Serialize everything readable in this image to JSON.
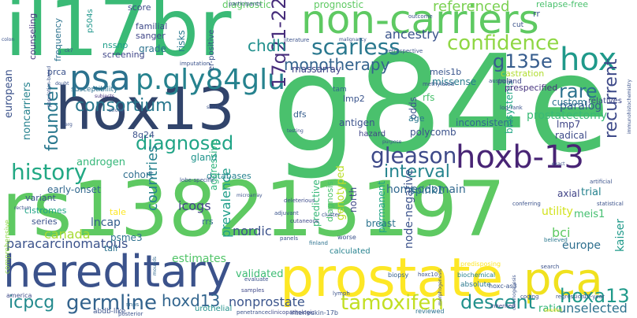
{
  "background": "#ffffff",
  "palette": [
    "#440154",
    "#46327e",
    "#365c8d",
    "#277f8e",
    "#1fa187",
    "#4ac16d",
    "#a0da39",
    "#fde725"
  ],
  "words": [
    {
      "text": "g84e",
      "color": "#4ac16d",
      "size": 170,
      "rot": 0
    },
    {
      "text": "rs138213197",
      "color": "#5ec962",
      "size": 96,
      "rot": 0
    },
    {
      "text": "il17br",
      "color": "#3aba76",
      "size": 100,
      "rot": 0
    },
    {
      "text": "hox13",
      "color": "#31446b",
      "size": 74,
      "rot": 0
    },
    {
      "text": "non-carriers",
      "color": "#5ec962",
      "size": 50,
      "rot": 0
    },
    {
      "text": "hereditary",
      "color": "#3b528b",
      "size": 56,
      "rot": 0
    },
    {
      "text": "prostate",
      "color": "#fde725",
      "size": 68,
      "rot": 0
    },
    {
      "text": "pca",
      "color": "#f0e11e",
      "size": 56,
      "rot": 0
    },
    {
      "text": "hoxb-13",
      "color": "#482475",
      "size": 40,
      "rot": 0
    },
    {
      "text": "p.gly84glu",
      "color": "#26828e",
      "size": 36,
      "rot": 0
    },
    {
      "text": "psa",
      "color": "#2c728e",
      "size": 44,
      "rot": 0
    },
    {
      "text": "hox",
      "color": "#1f998a",
      "size": 40,
      "rot": 0
    },
    {
      "text": "confidence",
      "color": "#8fd744",
      "size": 26,
      "rot": 0
    },
    {
      "text": "scarless",
      "color": "#2a788e",
      "size": 28,
      "rot": 0
    },
    {
      "text": "g135e",
      "color": "#365c8d",
      "size": 24,
      "rot": 0
    },
    {
      "text": "monotherapy",
      "color": "#33638d",
      "size": 20,
      "rot": 0
    },
    {
      "text": "17q21-22",
      "color": "#472d7b",
      "size": 24,
      "rot": -90
    },
    {
      "text": "history",
      "color": "#22a884",
      "size": 28,
      "rot": 0
    },
    {
      "text": "founder",
      "color": "#2a788e",
      "size": 22,
      "rot": -90
    },
    {
      "text": "consortium",
      "color": "#2a788e",
      "size": 22,
      "rot": 0
    },
    {
      "text": "diagnosed",
      "color": "#20a486",
      "size": 24,
      "rot": 0
    },
    {
      "text": "gleason",
      "color": "#3e4a89",
      "size": 28,
      "rot": 0
    },
    {
      "text": "recurrent",
      "color": "#3e4a89",
      "size": 22,
      "rot": -90
    },
    {
      "text": "interval",
      "color": "#25848e",
      "size": 22,
      "rot": 0
    },
    {
      "text": "tamoxifen",
      "color": "#c2df23",
      "size": 26,
      "rot": 0
    },
    {
      "text": "germline",
      "color": "#33638d",
      "size": 26,
      "rot": 0
    },
    {
      "text": "descent",
      "color": "#21918c",
      "size": 24,
      "rot": 0
    },
    {
      "text": "hoxa13",
      "color": "#1f9a8a",
      "size": 24,
      "rot": 0
    },
    {
      "text": "hoxd13",
      "color": "#32658e",
      "size": 20,
      "rot": 0
    },
    {
      "text": "icpcg",
      "color": "#238a8d",
      "size": 22,
      "rot": 0
    },
    {
      "text": "rare",
      "color": "#2c728e",
      "size": 24,
      "rot": 0
    },
    {
      "text": "chdh",
      "color": "#21908d",
      "size": 20,
      "rot": 0
    },
    {
      "text": "referenced",
      "color": "#7ad151",
      "size": 18,
      "rot": 0
    },
    {
      "text": "ancestry",
      "color": "#3a538b",
      "size": 16,
      "rot": 0
    },
    {
      "text": "unselected",
      "color": "#2c728e",
      "size": 16,
      "rot": 0
    },
    {
      "text": "nonprostate",
      "color": "#3a548c",
      "size": 16,
      "rot": 0
    },
    {
      "text": "paracarcinomatous",
      "color": "#3b528b",
      "size": 16,
      "rot": 0
    },
    {
      "text": "countries",
      "color": "#26828e",
      "size": 18,
      "rot": -90
    },
    {
      "text": "icogs",
      "color": "#414487",
      "size": 16,
      "rot": 0
    },
    {
      "text": "prevalence",
      "color": "#1f9e89",
      "size": 16,
      "rot": -90
    },
    {
      "text": "lncap",
      "color": "#35608d",
      "size": 14,
      "rot": 0
    },
    {
      "text": "psme3",
      "color": "#2d708e",
      "size": 12,
      "rot": 0
    },
    {
      "text": "canada",
      "color": "#a8db34",
      "size": 16,
      "rot": 0
    },
    {
      "text": "nordic",
      "color": "#3b518b",
      "size": 16,
      "rot": 0
    },
    {
      "text": "estimates",
      "color": "#52c569",
      "size": 14,
      "rot": 0
    },
    {
      "text": "validated",
      "color": "#3dbc74",
      "size": 13,
      "rot": 0
    },
    {
      "text": "paralog",
      "color": "#365d8d",
      "size": 14,
      "rot": 0
    },
    {
      "text": "homeodomain",
      "color": "#31688e",
      "size": 14,
      "rot": 0
    },
    {
      "text": "meis1",
      "color": "#44bf70",
      "size": 13,
      "rot": 0
    },
    {
      "text": "bci",
      "color": "#5ec962",
      "size": 16,
      "rot": 0
    },
    {
      "text": "europe",
      "color": "#2e6f8e",
      "size": 14,
      "rot": 0
    },
    {
      "text": "utility",
      "color": "#d2e21b",
      "size": 14,
      "rot": 0
    },
    {
      "text": "kaiser",
      "color": "#1f9a8a",
      "size": 14,
      "rot": -90
    },
    {
      "text": "ratio",
      "color": "#32b67a",
      "size": 13,
      "rot": 0
    },
    {
      "text": "breast",
      "color": "#2c738e",
      "size": 12,
      "rot": 0
    },
    {
      "text": "calculated",
      "color": "#26828e",
      "size": 10,
      "rot": 0
    },
    {
      "text": "node-negative",
      "color": "#3b528b",
      "size": 14,
      "rot": -90
    },
    {
      "text": "genotyped",
      "color": "#bade28",
      "size": 13,
      "rot": -90
    },
    {
      "text": "permanent",
      "color": "#20a386",
      "size": 12,
      "rot": -90
    },
    {
      "text": "spink1",
      "color": "#2c728e",
      "size": 13,
      "rot": 0
    },
    {
      "text": "predictive",
      "color": "#37b878",
      "size": 12,
      "rot": -90
    },
    {
      "text": "diagnosis",
      "color": "#4ac16d",
      "size": 11,
      "rot": -90
    },
    {
      "text": "north",
      "color": "#3f4889",
      "size": 12,
      "rot": -90
    },
    {
      "text": "inconsistent",
      "color": "#31688e",
      "size": 12,
      "rot": 0
    },
    {
      "text": "prostatectomy",
      "color": "#3aba76",
      "size": 14,
      "rot": 0
    },
    {
      "text": "lmp7",
      "color": "#404688",
      "size": 12,
      "rot": 0
    },
    {
      "text": "radical",
      "color": "#3e4c8a",
      "size": 12,
      "rot": 0
    },
    {
      "text": "trial",
      "color": "#26828e",
      "size": 13,
      "rot": 0
    },
    {
      "text": "axial",
      "color": "#414487",
      "size": 12,
      "rot": 0
    },
    {
      "text": "custom",
      "color": "#2c728e",
      "size": 12,
      "rot": 0
    },
    {
      "text": "relatives",
      "color": "#3f4889",
      "size": 10,
      "rot": 0
    },
    {
      "text": "biosystems",
      "color": "#22a785",
      "size": 12,
      "rot": -90
    },
    {
      "text": "prespecified",
      "color": "#46337e",
      "size": 11,
      "rot": 0
    },
    {
      "text": "castration",
      "color": "#b0dd2f",
      "size": 11,
      "rot": 0
    },
    {
      "text": "poland",
      "color": "#3f4889",
      "size": 9,
      "rot": 0
    },
    {
      "text": "rfs",
      "color": "#4ac16d",
      "size": 12,
      "rot": 0
    },
    {
      "text": "meis1b",
      "color": "#39558c",
      "size": 11,
      "rot": 0
    },
    {
      "text": "missense",
      "color": "#287c8e",
      "size": 12,
      "rot": 0
    },
    {
      "text": "massarray",
      "color": "#414487",
      "size": 12,
      "rot": 0
    },
    {
      "text": "odds",
      "color": "#3b528b",
      "size": 12,
      "rot": -90
    },
    {
      "text": "age",
      "color": "#2a788e",
      "size": 11,
      "rot": 0
    },
    {
      "text": "polycomb",
      "color": "#3b528b",
      "size": 12,
      "rot": 0
    },
    {
      "text": "antigen",
      "color": "#3b528b",
      "size": 12,
      "rot": 0
    },
    {
      "text": "lmp2",
      "color": "#3a548c",
      "size": 11,
      "rot": 0
    },
    {
      "text": "dfs",
      "color": "#365d8d",
      "size": 11,
      "rot": 0
    },
    {
      "text": "tam",
      "color": "#32658e",
      "size": 9,
      "rot": 0
    },
    {
      "text": "hazard",
      "color": "#414487",
      "size": 10,
      "rot": 0
    },
    {
      "text": "cohort",
      "color": "#2e6e8e",
      "size": 12,
      "rot": 0
    },
    {
      "text": "databases",
      "color": "#26828e",
      "size": 11,
      "rot": 0
    },
    {
      "text": "aggressive",
      "color": "#2fb47c",
      "size": 12,
      "rot": -90
    },
    {
      "text": "gland",
      "color": "#1f948c",
      "size": 12,
      "rot": 0
    },
    {
      "text": "androgen",
      "color": "#35b779",
      "size": 13,
      "rot": 0
    },
    {
      "text": "early-onset",
      "color": "#31688e",
      "size": 12,
      "rot": 0
    },
    {
      "text": "8q24",
      "color": "#3b528b",
      "size": 11,
      "rot": 0
    },
    {
      "text": "noncarriers",
      "color": "#26828e",
      "size": 13,
      "rot": -90
    },
    {
      "text": "european",
      "color": "#3b528b",
      "size": 13,
      "rot": -90
    },
    {
      "text": "grade",
      "color": "#2c728e",
      "size": 12,
      "rot": 0
    },
    {
      "text": "risks",
      "color": "#2a788e",
      "size": 12,
      "rot": -90
    },
    {
      "text": "sanger",
      "color": "#404688",
      "size": 11,
      "rot": 0
    },
    {
      "text": "familial",
      "color": "#3e4a89",
      "size": 11,
      "rot": 0
    },
    {
      "text": "nssnp",
      "color": "#1f9e89",
      "size": 11,
      "rot": 0
    },
    {
      "text": "screening",
      "color": "#404688",
      "size": 11,
      "rot": 0
    },
    {
      "text": "p504s",
      "color": "#1f968b",
      "size": 10,
      "rot": -90
    },
    {
      "text": "frequency",
      "color": "#2c728e",
      "size": 11,
      "rot": -90
    },
    {
      "text": "counseling",
      "color": "#46337e",
      "size": 11,
      "rot": -90
    },
    {
      "text": "prca",
      "color": "#3b528b",
      "size": 11,
      "rot": 0
    },
    {
      "text": "susceptibility",
      "color": "#2d708e",
      "size": 9,
      "rot": 0
    },
    {
      "text": "score",
      "color": "#3e4c8a",
      "size": 11,
      "rot": 0
    },
    {
      "text": "cistromes",
      "color": "#20a486",
      "size": 11,
      "rot": 0
    },
    {
      "text": "variant",
      "color": "#3b528b",
      "size": 11,
      "rot": 0
    },
    {
      "text": "series",
      "color": "#3b528b",
      "size": 11,
      "rot": 0
    },
    {
      "text": "tale",
      "color": "#fde725",
      "size": 11,
      "rot": 0
    },
    {
      "text": "tail",
      "color": "#2c728e",
      "size": 11,
      "rot": 0
    },
    {
      "text": "rrs",
      "color": "#31688e",
      "size": 11,
      "rot": 0
    },
    {
      "text": "comprehensive",
      "color": "#8fd744",
      "size": 9,
      "rot": -90
    },
    {
      "text": "abdb-like",
      "color": "#3b528b",
      "size": 9,
      "rot": 0
    },
    {
      "text": "urothelial",
      "color": "#21918c",
      "size": 10,
      "rot": 0
    },
    {
      "text": "interleukin-17b",
      "color": "#3a548c",
      "size": 8,
      "rot": 0
    },
    {
      "text": "penetrance",
      "color": "#3b528b",
      "size": 7,
      "rot": 0
    },
    {
      "text": "clinicopathologic",
      "color": "#3f4889",
      "size": 7,
      "rot": 0
    },
    {
      "text": "reviewed",
      "color": "#2c728e",
      "size": 8,
      "rot": 0
    },
    {
      "text": "biochemical",
      "color": "#26828e",
      "size": 8,
      "rot": 0
    },
    {
      "text": "absolute",
      "color": "#2a788e",
      "size": 9,
      "rot": 0
    },
    {
      "text": "inherited",
      "color": "#414487",
      "size": 7,
      "rot": 0
    },
    {
      "text": "hoxc-as3",
      "color": "#3a548c",
      "size": 8,
      "rot": 0
    },
    {
      "text": "predisposing",
      "color": "#fde725",
      "size": 8,
      "rot": 0
    },
    {
      "text": "biopsy",
      "color": "#35608d",
      "size": 8,
      "rot": 0
    },
    {
      "text": "hoxc10",
      "color": "#3b528b",
      "size": 7,
      "rot": 0
    },
    {
      "text": "lymph",
      "color": "#3b528b",
      "size": 7,
      "rot": 0
    },
    {
      "text": "america",
      "color": "#3e4c8a",
      "size": 8,
      "rot": 0
    },
    {
      "text": "snps",
      "color": "#31688e",
      "size": 7,
      "rot": 0
    },
    {
      "text": "posterior",
      "color": "#3b528b",
      "size": 7,
      "rot": 0
    },
    {
      "text": "mounds",
      "color": "#31688e",
      "size": 6,
      "rot": -90
    },
    {
      "text": "evaluate",
      "color": "#3b528b",
      "size": 7,
      "rot": 0
    },
    {
      "text": "samples",
      "color": "#3f4889",
      "size": 7,
      "rot": 0
    },
    {
      "text": "imputation",
      "color": "#3b528b",
      "size": 7,
      "rot": 0
    },
    {
      "text": "subjects",
      "color": "#46337e",
      "size": 6,
      "rot": 0
    },
    {
      "text": "lobe-specific",
      "color": "#3a548c",
      "size": 7,
      "rot": 0
    },
    {
      "text": "microarray",
      "color": "#3b528b",
      "size": 6,
      "rot": 0
    },
    {
      "text": "adjuvant",
      "color": "#3a548c",
      "size": 7,
      "rot": 0
    },
    {
      "text": "cutaneous",
      "color": "#3f4889",
      "size": 7,
      "rot": 0
    },
    {
      "text": "deleterious",
      "color": "#3e4c8a",
      "size": 7,
      "rot": 0
    },
    {
      "text": "panels",
      "color": "#3b528b",
      "size": 7,
      "rot": 0
    },
    {
      "text": "finland",
      "color": "#2c728e",
      "size": 7,
      "rot": 0
    },
    {
      "text": "cluster",
      "color": "#3b528b",
      "size": 7,
      "rot": 0
    },
    {
      "text": "worse",
      "color": "#3b528b",
      "size": 8,
      "rot": 0
    },
    {
      "text": "coding",
      "color": "#3b528b",
      "size": 7,
      "rot": 0
    },
    {
      "text": "regression",
      "color": "#3b528b",
      "size": 7,
      "rot": 0
    },
    {
      "text": "10-year",
      "color": "#3b528b",
      "size": 7,
      "rot": 0
    },
    {
      "text": "statistical",
      "color": "#3b528b",
      "size": 7,
      "rot": 0
    },
    {
      "text": "believed",
      "color": "#2a788e",
      "size": 7,
      "rot": 0
    },
    {
      "text": "artificial",
      "color": "#3b528b",
      "size": 7,
      "rot": 0
    },
    {
      "text": "conferring",
      "color": "#3b528b",
      "size": 7,
      "rot": 0
    },
    {
      "text": "log-rank",
      "color": "#3b528b",
      "size": 7,
      "rot": 0
    },
    {
      "text": "outcome",
      "color": "#3b528b",
      "size": 7,
      "rot": 0
    },
    {
      "text": "diagnostic",
      "color": "#5ec962",
      "size": 12,
      "rot": 0
    },
    {
      "text": "prognostic",
      "color": "#5ec962",
      "size": 12,
      "rot": 0
    },
    {
      "text": "relapse-free",
      "color": "#4ac16d",
      "size": 11,
      "rot": 0
    },
    {
      "text": "rr",
      "color": "#3b528b",
      "size": 11,
      "rot": 0
    },
    {
      "text": "cut",
      "color": "#3b528b",
      "size": 9,
      "rot": 0
    },
    {
      "text": "methylated",
      "color": "#3b528b",
      "size": 7,
      "rot": 0
    },
    {
      "text": "australia",
      "color": "#3b528b",
      "size": 7,
      "rot": 0
    },
    {
      "text": "retrospective",
      "color": "#3b528b",
      "size": 7,
      "rot": 0
    },
    {
      "text": "literature",
      "color": "#3b528b",
      "size": 7,
      "rot": 0
    },
    {
      "text": "malignancy",
      "color": "#3b528b",
      "size": 6,
      "rot": 0
    },
    {
      "text": "er-positive",
      "color": "#3b528b",
      "size": 10,
      "rot": -90
    },
    {
      "text": "participants",
      "color": "#3b528b",
      "size": 7,
      "rot": 0
    },
    {
      "text": "immunohistochemistry",
      "color": "#3b528b",
      "size": 6,
      "rot": -90
    },
    {
      "text": "colon",
      "color": "#3b528b",
      "size": 6,
      "rot": 0
    },
    {
      "text": "ck7",
      "color": "#3b528b",
      "size": 6,
      "rot": 0
    },
    {
      "text": "doubt",
      "color": "#3b528b",
      "size": 6,
      "rot": 0
    },
    {
      "text": "population-based",
      "color": "#3b528b",
      "size": 6,
      "rot": -90
    },
    {
      "text": "rectum",
      "color": "#3b528b",
      "size": 6,
      "rot": 0
    },
    {
      "text": "erg",
      "color": "#3b528b",
      "size": 6,
      "rot": 0
    },
    {
      "text": "strong",
      "color": "#3b528b",
      "size": 6,
      "rot": 0
    },
    {
      "text": "shorter",
      "color": "#3b528b",
      "size": 6,
      "rot": 0
    },
    {
      "text": "testing",
      "color": "#3b528b",
      "size": 6,
      "rot": 0
    },
    {
      "text": "purpose",
      "color": "#3b528b",
      "size": 6,
      "rot": 0
    },
    {
      "text": "exact",
      "color": "#3b528b",
      "size": 6,
      "rot": 0
    },
    {
      "text": "search",
      "color": "#3b528b",
      "size": 7,
      "rot": 0
    },
    {
      "text": "sweden",
      "color": "#fde725",
      "size": 6,
      "rot": 0
    },
    {
      "text": "carcinogenesis",
      "color": "#3b528b",
      "size": 6,
      "rot": -90
    },
    {
      "text": "morphogenesis",
      "color": "#3b528b",
      "size": 6,
      "rot": -90
    }
  ]
}
